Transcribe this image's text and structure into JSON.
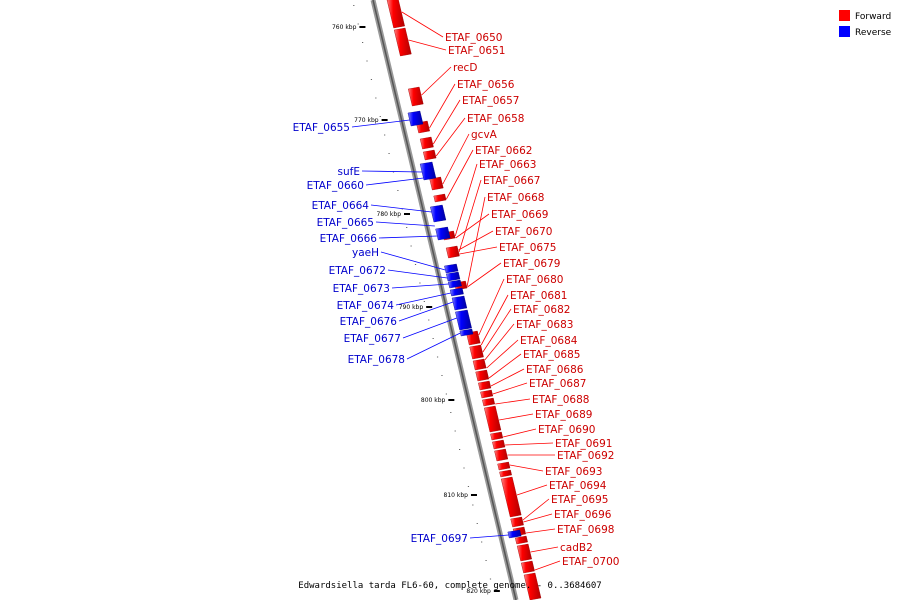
{
  "caption": "Edwardsiella tarda FL6-60, complete genome. - 0..3684607",
  "legend": [
    {
      "label": "Forward",
      "color": "#ff0000"
    },
    {
      "label": "Reverse",
      "color": "#0000ff"
    }
  ],
  "ticks": [
    "760 kbp",
    "770 kbp",
    "780 kbp",
    "790 kbp",
    "800 kbp",
    "810 kbp",
    "820 kbp"
  ],
  "forward_genes": [
    "ETAF_0650",
    "ETAF_0651",
    "recD",
    "ETAF_0656",
    "ETAF_0657",
    "ETAF_0658",
    "gcvA",
    "ETAF_0662",
    "ETAF_0663",
    "ETAF_0667",
    "ETAF_0668",
    "ETAF_0669",
    "ETAF_0670",
    "ETAF_0675",
    "ETAF_0679",
    "ETAF_0680",
    "ETAF_0681",
    "ETAF_0682",
    "ETAF_0683",
    "ETAF_0684",
    "ETAF_0685",
    "ETAF_0686",
    "ETAF_0687",
    "ETAF_0688",
    "ETAF_0689",
    "ETAF_0690",
    "ETAF_0691",
    "ETAF_0692",
    "ETAF_0693",
    "ETAF_0694",
    "ETAF_0695",
    "ETAF_0696",
    "ETAF_0698",
    "cadB2",
    "ETAF_0700"
  ],
  "reverse_genes": [
    "ETAF_0655",
    "sufE",
    "ETAF_0660",
    "ETAF_0664",
    "ETAF_0665",
    "ETAF_0666",
    "yaeH",
    "ETAF_0672",
    "ETAF_0673",
    "ETAF_0674",
    "ETAF_0676",
    "ETAF_0677",
    "ETAF_0678",
    "ETAF_0697"
  ]
}
